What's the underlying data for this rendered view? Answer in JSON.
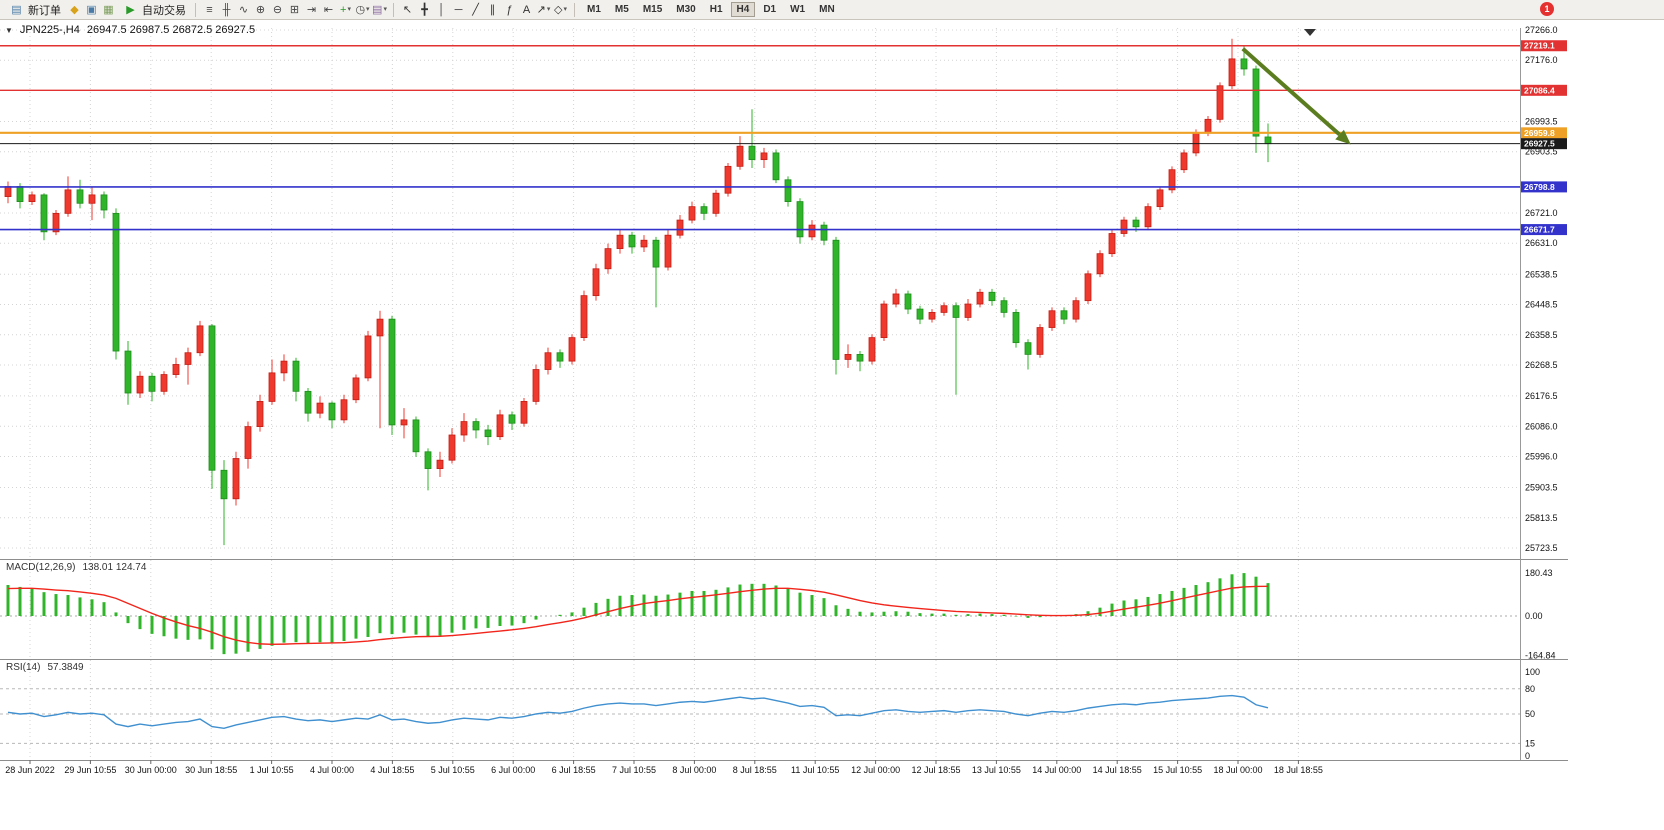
{
  "toolbar": {
    "new_order_label": "新订单",
    "auto_trading_label": "自动交易",
    "left_icons": [
      {
        "name": "alerts-icon",
        "glyph": "◆",
        "color": "#d8a21a"
      },
      {
        "name": "market-watch-icon",
        "glyph": "▣",
        "color": "#4a7ba6"
      },
      {
        "name": "navigator-icon",
        "glyph": "▦",
        "color": "#7a9c5a"
      }
    ],
    "auto_trading_icon": {
      "name": "play-icon",
      "glyph": "▶",
      "color": "#2a9a2a"
    },
    "chart_icons": [
      {
        "name": "bar-chart-icon",
        "glyph": "≡",
        "color": "#444"
      },
      {
        "name": "candlestick-chart-icon",
        "glyph": "╫",
        "color": "#444"
      },
      {
        "name": "line-chart-icon",
        "glyph": "∿",
        "color": "#444"
      },
      {
        "name": "zoom-in-icon",
        "glyph": "⊕",
        "color": "#444"
      },
      {
        "name": "zoom-out-icon",
        "glyph": "⊖",
        "color": "#444"
      },
      {
        "name": "tile-windows-icon",
        "glyph": "⊞",
        "color": "#444"
      },
      {
        "name": "auto-scroll-icon",
        "glyph": "⇥",
        "color": "#444"
      },
      {
        "name": "chart-shift-icon",
        "glyph": "⇤",
        "color": "#444"
      },
      {
        "name": "indicators-icon",
        "glyph": "+",
        "color": "#2a9a2a",
        "dropdown": true
      },
      {
        "name": "periods-icon",
        "glyph": "◷",
        "color": "#444",
        "dropdown": true
      },
      {
        "name": "templates-icon",
        "glyph": "▤",
        "color": "#8a6aa0",
        "dropdown": true
      }
    ],
    "draw_icons": [
      {
        "name": "cursor-icon",
        "glyph": "↖",
        "color": "#333"
      },
      {
        "name": "crosshair-icon",
        "glyph": "╋",
        "color": "#333"
      },
      {
        "name": "vertical-line-icon",
        "glyph": "│",
        "color": "#333"
      },
      {
        "name": "horizontal-line-icon",
        "glyph": "─",
        "color": "#333"
      },
      {
        "name": "trendline-icon",
        "glyph": "╱",
        "color": "#333"
      },
      {
        "name": "channel-icon",
        "glyph": "∥",
        "color": "#333"
      },
      {
        "name": "fibonacci-icon",
        "glyph": "ƒ",
        "color": "#333"
      },
      {
        "name": "text-icon",
        "glyph": "A",
        "color": "#333"
      },
      {
        "name": "arrows-icon",
        "glyph": "↗",
        "color": "#333",
        "dropdown": true
      },
      {
        "name": "shapes-icon",
        "glyph": "◇",
        "color": "#333",
        "dropdown": true
      }
    ],
    "timeframes": [
      "M1",
      "M5",
      "M15",
      "M30",
      "H1",
      "H4",
      "D1",
      "W1",
      "MN"
    ],
    "active_timeframe": "H4",
    "notification_badge": "1"
  },
  "chart": {
    "fastnav_icon": "▼",
    "title": {
      "symbol_period": "JPN225-,H4",
      "ohlc": "26947.5 26987.5 26872.5 26927.5"
    }
  },
  "chart_data": {
    "type": "candlestick",
    "symbol": "JPN225-",
    "period": "H4",
    "up_color_convention": "red-up-green-down",
    "price_axis": {
      "min": 25723.5,
      "max": 27266.0,
      "ticks": [
        27266.0,
        27176.0,
        26993.5,
        26903.5,
        26721.0,
        26631.0,
        26538.5,
        26448.5,
        26358.5,
        26268.5,
        26176.5,
        26086.0,
        25996.0,
        25903.5,
        25813.5,
        25723.5
      ]
    },
    "hlines": [
      {
        "price": 27219.1,
        "color": "#e23232",
        "width": 1.4
      },
      {
        "price": 27086.4,
        "color": "#e23232",
        "width": 1.4
      },
      {
        "price": 26959.8,
        "color": "#efa126",
        "width": 2.2
      },
      {
        "price": 26927.5,
        "color": "#1a1a1a",
        "width": 1,
        "current": true
      },
      {
        "price": 26798.8,
        "color": "#3333cc",
        "width": 1.6
      },
      {
        "price": 26671.7,
        "color": "#3333cc",
        "width": 1.6
      }
    ],
    "time_labels": [
      "28 Jun 2022",
      "29 Jun 10:55",
      "30 Jun 00:00",
      "30 Jun 18:55",
      "1 Jul 10:55",
      "4 Jul 00:00",
      "4 Jul 18:55",
      "5 Jul 10:55",
      "6 Jul 00:00",
      "6 Jul 18:55",
      "7 Jul 10:55",
      "8 Jul 00:00",
      "8 Jul 18:55",
      "11 Jul 10:55",
      "12 Jul 00:00",
      "12 Jul 18:55",
      "13 Jul 10:55",
      "14 Jul 00:00",
      "14 Jul 18:55",
      "15 Jul 10:55",
      "18 Jul 00:00",
      "18 Jul 18:55"
    ],
    "candles": [
      [
        26770,
        26815,
        26750,
        26800
      ],
      [
        26800,
        26810,
        26735,
        26755
      ],
      [
        26755,
        26785,
        26745,
        26775
      ],
      [
        26775,
        26780,
        26640,
        26665
      ],
      [
        26665,
        26730,
        26655,
        26720
      ],
      [
        26720,
        26830,
        26710,
        26790
      ],
      [
        26790,
        26820,
        26735,
        26750
      ],
      [
        26750,
        26800,
        26700,
        26775
      ],
      [
        26775,
        26785,
        26705,
        26730
      ],
      [
        26720,
        26735,
        26285,
        26310
      ],
      [
        26310,
        26340,
        26150,
        26185
      ],
      [
        26185,
        26250,
        26170,
        26235
      ],
      [
        26235,
        26245,
        26160,
        26190
      ],
      [
        26190,
        26250,
        26180,
        26240
      ],
      [
        26240,
        26290,
        26230,
        26270
      ],
      [
        26270,
        26320,
        26210,
        26305
      ],
      [
        26305,
        26400,
        26295,
        26385
      ],
      [
        26385,
        26390,
        25900,
        25955
      ],
      [
        25955,
        25985,
        25732,
        25870
      ],
      [
        25870,
        26010,
        25850,
        25990
      ],
      [
        25990,
        26100,
        25960,
        26085
      ],
      [
        26085,
        26180,
        26070,
        26160
      ],
      [
        26160,
        26285,
        26150,
        26245
      ],
      [
        26245,
        26300,
        26220,
        26280
      ],
      [
        26280,
        26290,
        26160,
        26190
      ],
      [
        26190,
        26200,
        26100,
        26125
      ],
      [
        26125,
        26175,
        26110,
        26155
      ],
      [
        26155,
        26160,
        26080,
        26105
      ],
      [
        26105,
        26180,
        26095,
        26165
      ],
      [
        26165,
        26240,
        26155,
        26230
      ],
      [
        26230,
        26370,
        26220,
        26355
      ],
      [
        26355,
        26430,
        26080,
        26405
      ],
      [
        26405,
        26415,
        26060,
        26090
      ],
      [
        26090,
        26140,
        26050,
        26105
      ],
      [
        26105,
        26115,
        25995,
        26010
      ],
      [
        26010,
        26020,
        25895,
        25960
      ],
      [
        25960,
        26010,
        25935,
        25985
      ],
      [
        25985,
        26080,
        25975,
        26060
      ],
      [
        26060,
        26125,
        26040,
        26100
      ],
      [
        26100,
        26110,
        26050,
        26075
      ],
      [
        26075,
        26090,
        26030,
        26055
      ],
      [
        26055,
        26135,
        26045,
        26120
      ],
      [
        26120,
        26130,
        26075,
        26095
      ],
      [
        26095,
        26170,
        26085,
        26160
      ],
      [
        26160,
        26270,
        26150,
        26255
      ],
      [
        26255,
        26320,
        26240,
        26305
      ],
      [
        26305,
        26315,
        26260,
        26280
      ],
      [
        26280,
        26360,
        26270,
        26350
      ],
      [
        26350,
        26490,
        26340,
        26475
      ],
      [
        26475,
        26570,
        26460,
        26555
      ],
      [
        26555,
        26630,
        26540,
        26615
      ],
      [
        26615,
        26670,
        26600,
        26655
      ],
      [
        26655,
        26665,
        26600,
        26620
      ],
      [
        26620,
        26655,
        26605,
        26640
      ],
      [
        26640,
        26650,
        26440,
        26560
      ],
      [
        26560,
        26670,
        26550,
        26655
      ],
      [
        26655,
        26715,
        26645,
        26700
      ],
      [
        26700,
        26755,
        26690,
        26740
      ],
      [
        26740,
        26750,
        26700,
        26720
      ],
      [
        26720,
        26790,
        26710,
        26780
      ],
      [
        26780,
        26870,
        26770,
        26860
      ],
      [
        26860,
        26950,
        26850,
        26920
      ],
      [
        26920,
        27030,
        26855,
        26880
      ],
      [
        26880,
        26915,
        26855,
        26900
      ],
      [
        26900,
        26910,
        26810,
        26820
      ],
      [
        26820,
        26830,
        26740,
        26755
      ],
      [
        26755,
        26765,
        26630,
        26650
      ],
      [
        26650,
        26700,
        26640,
        26685
      ],
      [
        26685,
        26695,
        26625,
        26640
      ],
      [
        26640,
        26650,
        26240,
        26285
      ],
      [
        26285,
        26330,
        26260,
        26300
      ],
      [
        26300,
        26310,
        26250,
        26280
      ],
      [
        26280,
        26360,
        26270,
        26350
      ],
      [
        26350,
        26460,
        26340,
        26450
      ],
      [
        26450,
        26495,
        26440,
        26480
      ],
      [
        26480,
        26490,
        26420,
        26435
      ],
      [
        26435,
        26445,
        26390,
        26405
      ],
      [
        26405,
        26435,
        26395,
        26425
      ],
      [
        26425,
        26455,
        26415,
        26445
      ],
      [
        26445,
        26455,
        26180,
        26410
      ],
      [
        26410,
        26465,
        26400,
        26450
      ],
      [
        26450,
        26495,
        26440,
        26485
      ],
      [
        26485,
        26495,
        26445,
        26460
      ],
      [
        26460,
        26470,
        26410,
        26425
      ],
      [
        26425,
        26435,
        26320,
        26335
      ],
      [
        26335,
        26345,
        26255,
        26300
      ],
      [
        26300,
        26390,
        26290,
        26380
      ],
      [
        26380,
        26440,
        26370,
        26430
      ],
      [
        26430,
        26440,
        26390,
        26405
      ],
      [
        26405,
        26470,
        26395,
        26460
      ],
      [
        26460,
        26550,
        26450,
        26540
      ],
      [
        26540,
        26610,
        26530,
        26600
      ],
      [
        26600,
        26670,
        26590,
        26660
      ],
      [
        26660,
        26710,
        26650,
        26700
      ],
      [
        26700,
        26710,
        26665,
        26680
      ],
      [
        26680,
        26750,
        26670,
        26740
      ],
      [
        26740,
        26800,
        26730,
        26790
      ],
      [
        26790,
        26860,
        26780,
        26850
      ],
      [
        26850,
        26910,
        26840,
        26900
      ],
      [
        26900,
        26970,
        26890,
        26960
      ],
      [
        26960,
        27010,
        26950,
        27000
      ],
      [
        27000,
        27110,
        26990,
        27100
      ],
      [
        27100,
        27240,
        27090,
        27180
      ],
      [
        27180,
        27219,
        27130,
        27150
      ],
      [
        27150,
        27160,
        26900,
        26950
      ],
      [
        26947.5,
        26987.5,
        26872.5,
        26927.5
      ]
    ],
    "macd": {
      "label": "MACD(12,26,9)",
      "values_text": "138.01 124.74",
      "axis_labels": [
        "180.43",
        "0.00",
        "-164.84"
      ],
      "axis_max": 180.43,
      "axis_min": -164.84,
      "histogram": [
        130,
        122,
        115,
        100,
        92,
        88,
        78,
        70,
        58,
        15,
        -30,
        -55,
        -75,
        -85,
        -95,
        -100,
        -98,
        -140,
        -160,
        -158,
        -150,
        -138,
        -125,
        -112,
        -110,
        -115,
        -110,
        -112,
        -105,
        -95,
        -88,
        -72,
        -76,
        -70,
        -78,
        -85,
        -82,
        -70,
        -58,
        -52,
        -50,
        -42,
        -40,
        -30,
        -15,
        0,
        5,
        15,
        35,
        55,
        72,
        85,
        88,
        90,
        85,
        90,
        98,
        105,
        105,
        110,
        120,
        132,
        135,
        135,
        128,
        115,
        98,
        88,
        75,
        45,
        30,
        18,
        15,
        18,
        20,
        18,
        12,
        10,
        10,
        5,
        8,
        10,
        8,
        5,
        -2,
        -8,
        -5,
        2,
        2,
        8,
        20,
        35,
        52,
        65,
        70,
        80,
        92,
        105,
        118,
        130,
        142,
        158,
        175,
        180,
        165,
        138.01
      ],
      "signal": [
        115,
        116,
        116,
        113,
        109,
        106,
        101,
        95,
        88,
        74,
        53,
        32,
        11,
        -8,
        -25,
        -40,
        -52,
        -68,
        -87,
        -101,
        -111,
        -117,
        -119,
        -118,
        -116,
        -115,
        -114,
        -113,
        -112,
        -109,
        -105,
        -99,
        -94,
        -90,
        -87,
        -86,
        -85,
        -82,
        -78,
        -73,
        -68,
        -63,
        -58,
        -52,
        -45,
        -36,
        -28,
        -19,
        -8,
        5,
        18,
        31,
        42,
        52,
        59,
        65,
        72,
        78,
        83,
        89,
        95,
        102,
        108,
        113,
        116,
        116,
        112,
        107,
        100,
        89,
        77,
        65,
        55,
        47,
        41,
        36,
        31,
        27,
        23,
        19,
        17,
        15,
        13,
        11,
        8,
        5,
        3,
        2,
        2,
        3,
        6,
        12,
        20,
        29,
        37,
        45,
        54,
        64,
        75,
        86,
        96,
        107,
        117,
        122,
        124,
        124.74
      ]
    },
    "rsi": {
      "label": "RSI(14)",
      "value_text": "57.3849",
      "levels": [
        80,
        50,
        15
      ],
      "axis_labels": [
        100,
        80,
        50,
        15,
        0
      ],
      "values": [
        52,
        50,
        51,
        47,
        49,
        52,
        50,
        51,
        49,
        38,
        35,
        38,
        36,
        38,
        40,
        41,
        44,
        35,
        33,
        37,
        40,
        43,
        46,
        47,
        44,
        42,
        43,
        41,
        43,
        45,
        44,
        49,
        43,
        44,
        41,
        39,
        40,
        43,
        45,
        44,
        43,
        46,
        45,
        47,
        50,
        52,
        51,
        53,
        57,
        60,
        62,
        63,
        62,
        62,
        60,
        62,
        64,
        65,
        64,
        66,
        68,
        70,
        68,
        69,
        66,
        63,
        59,
        60,
        58,
        48,
        49,
        48,
        51,
        54,
        55,
        53,
        52,
        53,
        54,
        52,
        54,
        55,
        54,
        53,
        50,
        48,
        51,
        53,
        52,
        54,
        57,
        59,
        61,
        62,
        61,
        63,
        64,
        66,
        67,
        68,
        69,
        71,
        72,
        70,
        61,
        57.38
      ]
    },
    "trend_arrow": {
      "from_index": 102.9,
      "from_price": 27210,
      "to_index": 111.9,
      "to_price": 26925
    },
    "chart_shift_marker_index": 108.5,
    "colors": {
      "up": "#ef392e",
      "up_edge": "#c21d14",
      "down": "#2fb42a",
      "down_edge": "#1f8c1c",
      "grid": "#d4d4d4",
      "macd_hist": "#2fb42a",
      "macd_signal": "#f1251b",
      "rsi_line": "#4090d0",
      "arrow": "#5b7d20",
      "separator": "#8d8d8d"
    }
  }
}
